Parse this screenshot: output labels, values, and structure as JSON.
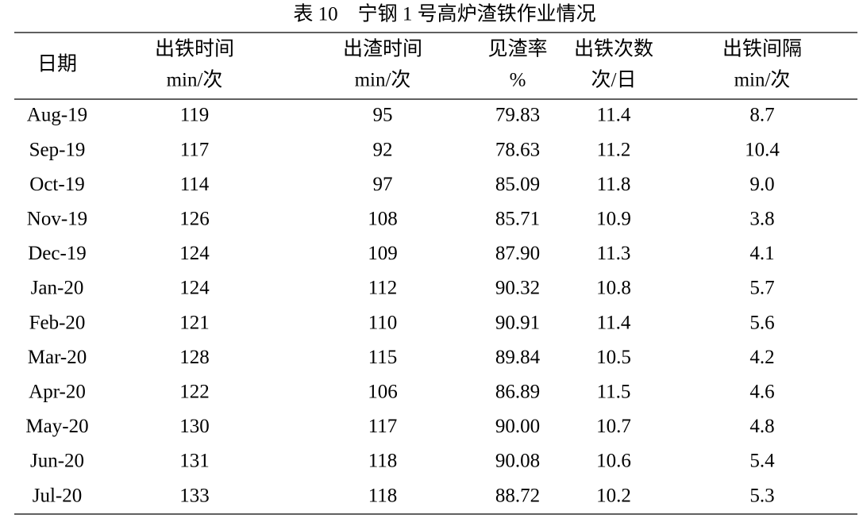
{
  "title": "表 10　宁钢 1 号高炉渣铁作业情况",
  "table": {
    "header": [
      [
        "日期"
      ],
      [
        "出铁时间",
        "min/次"
      ],
      [
        "出渣时间",
        "min/次"
      ],
      [
        "见渣率",
        "%"
      ],
      [
        "出铁次数",
        "次/日"
      ],
      [
        "出铁间隔",
        "min/次"
      ]
    ],
    "rows": [
      [
        "Aug-19",
        "119",
        "95",
        "79.83",
        "11.4",
        "8.7"
      ],
      [
        "Sep-19",
        "117",
        "92",
        "78.63",
        "11.2",
        "10.4"
      ],
      [
        "Oct-19",
        "114",
        "97",
        "85.09",
        "11.8",
        "9.0"
      ],
      [
        "Nov-19",
        "126",
        "108",
        "85.71",
        "10.9",
        "3.8"
      ],
      [
        "Dec-19",
        "124",
        "109",
        "87.90",
        "11.3",
        "4.1"
      ],
      [
        "Jan-20",
        "124",
        "112",
        "90.32",
        "10.8",
        "5.7"
      ],
      [
        "Feb-20",
        "121",
        "110",
        "90.91",
        "11.4",
        "5.6"
      ],
      [
        "Mar-20",
        "128",
        "115",
        "89.84",
        "10.5",
        "4.2"
      ],
      [
        "Apr-20",
        "122",
        "106",
        "86.89",
        "11.5",
        "4.6"
      ],
      [
        "May-20",
        "130",
        "117",
        "90.00",
        "10.7",
        "4.8"
      ],
      [
        "Jun-20",
        "131",
        "118",
        "90.08",
        "10.6",
        "5.4"
      ],
      [
        "Jul-20",
        "133",
        "118",
        "88.72",
        "10.2",
        "5.3"
      ]
    ]
  }
}
